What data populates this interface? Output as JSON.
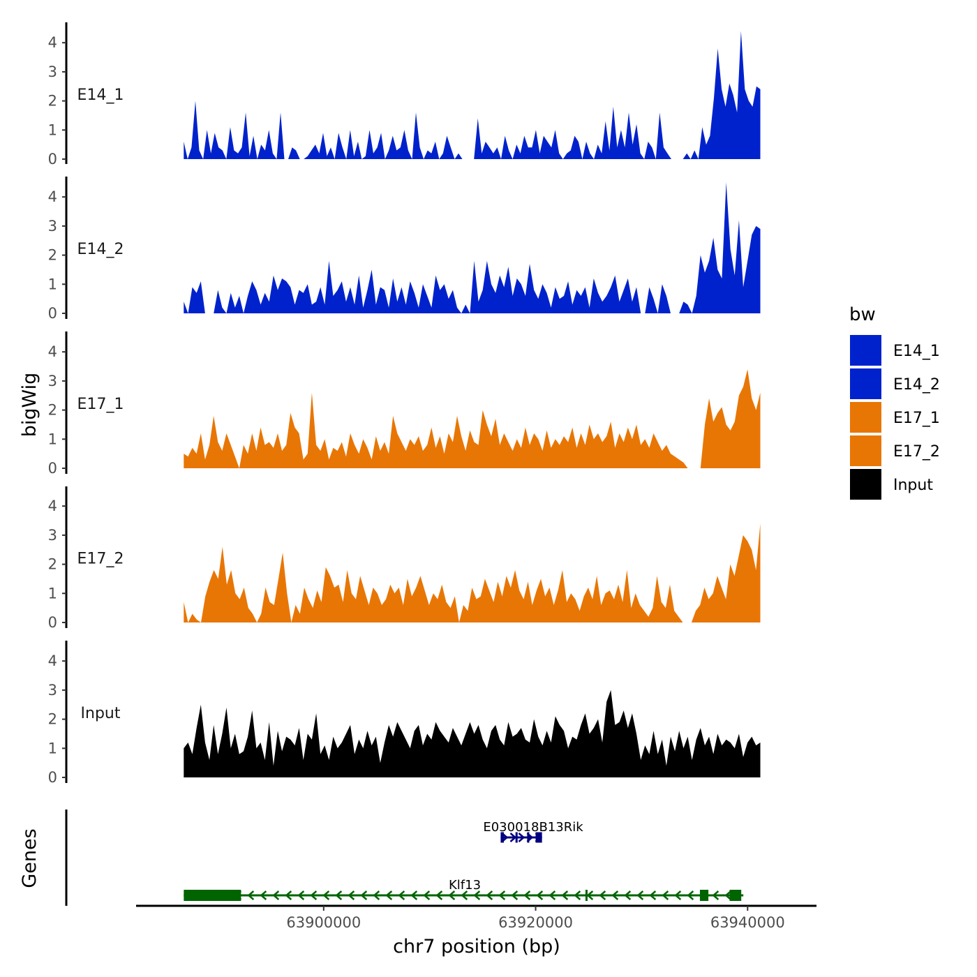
{
  "chart_data": {
    "type": "area",
    "title": "",
    "ylabel": "bigWig",
    "genes_label": "Genes",
    "xlabel": "chr7 position (bp)",
    "xlim": [
      63882300,
      63946500
    ],
    "x_ticks": [
      63900000,
      63920000,
      63940000
    ],
    "x_tick_labels": [
      "63900000",
      "63920000",
      "63940000"
    ],
    "data_xrange": [
      63886800,
      63941200
    ],
    "ylim": [
      0,
      4.6
    ],
    "y_ticks": [
      0,
      1,
      2,
      3,
      4
    ],
    "y_tick_labels": [
      "0",
      "1",
      "2",
      "3",
      "4"
    ],
    "legend": {
      "title": "bw",
      "position": "right",
      "entries": [
        {
          "label": "E14_1",
          "color": "#0022cc"
        },
        {
          "label": "E14_2",
          "color": "#0022cc"
        },
        {
          "label": "E17_1",
          "color": "#e87605"
        },
        {
          "label": "E17_2",
          "color": "#e87605"
        },
        {
          "label": "Input",
          "color": "#000000"
        }
      ]
    },
    "series": [
      {
        "name": "E14_1",
        "color": "#0022cc",
        "values": [
          0.6,
          0,
          0.4,
          2.0,
          0.3,
          0,
          1.0,
          0.2,
          0.9,
          0.4,
          0.3,
          0,
          1.1,
          0.3,
          0.2,
          0.4,
          1.6,
          0.1,
          0.8,
          0,
          0.5,
          0.3,
          1.0,
          0.2,
          0,
          1.6,
          0,
          0,
          0.4,
          0.3,
          0,
          0,
          0.1,
          0.3,
          0.5,
          0.2,
          0.9,
          0.1,
          0.4,
          0,
          0.9,
          0.4,
          0,
          1.0,
          0.1,
          0.6,
          0,
          0.1,
          1.0,
          0.2,
          0.4,
          0.9,
          0,
          0.3,
          0.8,
          0.3,
          0.4,
          1.0,
          0.3,
          0,
          1.6,
          0.4,
          0,
          0.3,
          0.2,
          0.6,
          0,
          0.2,
          0.8,
          0.4,
          0,
          0.2,
          0,
          0,
          0,
          0,
          1.4,
          0.2,
          0.6,
          0.4,
          0.2,
          0.4,
          0,
          0.8,
          0.3,
          0,
          0.5,
          0.2,
          0.8,
          0.4,
          0.4,
          1.0,
          0.2,
          0.8,
          0.6,
          0.4,
          1.0,
          0.2,
          0,
          0.2,
          0.3,
          0.8,
          0.6,
          0,
          0.6,
          0.2,
          0,
          0.5,
          0.2,
          1.3,
          0.3,
          1.8,
          0.4,
          1.0,
          0.4,
          1.6,
          0.5,
          1.2,
          0.2,
          0,
          0.6,
          0.4,
          0,
          1.6,
          0.4,
          0.2,
          0,
          0,
          0,
          0,
          0.2,
          0,
          0.3,
          0,
          1.1,
          0.5,
          0.8,
          2.1,
          3.8,
          2.4,
          1.8,
          2.6,
          2.2,
          1.6,
          4.4,
          2.4,
          2.0,
          1.8,
          2.5,
          2.4
        ]
      },
      {
        "name": "E14_2",
        "color": "#0022cc",
        "values": [
          0.4,
          0,
          0.9,
          0.7,
          1.1,
          0,
          0,
          0,
          0.8,
          0.2,
          0,
          0.7,
          0.2,
          0.6,
          0,
          0.6,
          1.1,
          0.8,
          0.3,
          0.7,
          0.4,
          1.3,
          0.8,
          1.2,
          1.1,
          0.9,
          0.3,
          0.8,
          0.7,
          1.0,
          0.3,
          0.4,
          0.9,
          0.3,
          1.8,
          0.6,
          0.8,
          1.1,
          0.4,
          0.9,
          0.3,
          1.3,
          0.2,
          0.8,
          1.5,
          0.3,
          0.9,
          0.8,
          0.2,
          1.2,
          0.4,
          0.9,
          0.3,
          1.1,
          0.7,
          0.2,
          1.0,
          0.6,
          0.2,
          1.3,
          0.8,
          1.0,
          0.5,
          0.8,
          0.2,
          0,
          0.3,
          0,
          1.8,
          0.4,
          0.8,
          1.8,
          1.0,
          0.7,
          1.3,
          0.9,
          1.6,
          0.6,
          1.2,
          1.0,
          0.6,
          1.7,
          0.8,
          0.5,
          1.0,
          0.7,
          0.2,
          0.9,
          0.5,
          0.6,
          1.1,
          0.3,
          0.8,
          0.6,
          0.9,
          0.2,
          1.2,
          0.7,
          0.4,
          0.6,
          0.9,
          1.3,
          0.4,
          0.8,
          1.2,
          0.4,
          0.9,
          0,
          0,
          0.9,
          0.5,
          0,
          1.0,
          0.6,
          0,
          0,
          0,
          0.4,
          0.3,
          0,
          0.6,
          2.0,
          1.4,
          1.8,
          2.6,
          1.5,
          1.2,
          4.5,
          2.2,
          1.3,
          3.2,
          0.9,
          1.8,
          2.7,
          3.0,
          2.9
        ]
      },
      {
        "name": "E17_1",
        "color": "#e87605",
        "values": [
          0.5,
          0.4,
          0.7,
          0.5,
          1.2,
          0.3,
          0.8,
          1.8,
          0.9,
          0.6,
          1.2,
          0.8,
          0.4,
          0,
          0.8,
          0.5,
          1.2,
          0.6,
          1.4,
          0.8,
          0.9,
          0.7,
          1.2,
          0.6,
          0.8,
          1.9,
          1.4,
          1.2,
          0.3,
          0.5,
          2.6,
          0.8,
          0.6,
          1.0,
          0.3,
          0.7,
          0.6,
          0.9,
          0.4,
          1.2,
          0.8,
          0.5,
          1.0,
          0.7,
          0.3,
          1.1,
          0.6,
          0.9,
          0.5,
          1.8,
          1.2,
          0.9,
          0.6,
          1.0,
          0.8,
          1.1,
          0.6,
          0.8,
          1.4,
          0.7,
          1.1,
          0.5,
          1.2,
          0.9,
          1.8,
          1.1,
          0.6,
          1.3,
          0.9,
          0.8,
          2.0,
          1.5,
          1.1,
          1.7,
          0.8,
          1.2,
          0.9,
          0.6,
          1.0,
          0.7,
          1.4,
          0.8,
          1.2,
          1.0,
          0.6,
          1.3,
          0.7,
          1.0,
          0.8,
          1.1,
          0.9,
          1.4,
          0.7,
          1.2,
          0.8,
          1.5,
          1.0,
          1.2,
          0.9,
          1.1,
          1.6,
          0.7,
          1.2,
          0.9,
          1.4,
          1.0,
          1.5,
          0.8,
          1.0,
          0.7,
          1.2,
          0.9,
          0.6,
          0.8,
          0.5,
          0.4,
          0.3,
          0.2,
          0,
          0,
          0,
          0,
          1.5,
          2.4,
          1.6,
          1.9,
          2.1,
          1.5,
          1.3,
          1.6,
          2.5,
          2.8,
          3.4,
          2.4,
          2.0,
          2.6
        ]
      },
      {
        "name": "E17_2",
        "color": "#e87605",
        "values": [
          0.7,
          0,
          0.3,
          0.1,
          0,
          0.9,
          1.4,
          1.8,
          1.5,
          2.6,
          1.3,
          1.8,
          1.0,
          0.8,
          1.2,
          0.5,
          0.3,
          0,
          0.3,
          1.2,
          0.7,
          0.6,
          1.5,
          2.4,
          1.0,
          0,
          0.6,
          0.3,
          1.2,
          0.8,
          0.5,
          1.1,
          0.7,
          1.9,
          1.6,
          1.2,
          1.3,
          0.7,
          1.8,
          1.0,
          0.8,
          1.6,
          1.1,
          0.6,
          1.2,
          1.0,
          0.6,
          0.8,
          1.3,
          1.0,
          1.2,
          0.6,
          1.5,
          0.9,
          1.2,
          1.6,
          1.1,
          0.6,
          1.0,
          0.8,
          1.3,
          0.7,
          0.5,
          0.9,
          0,
          0.6,
          0.4,
          1.2,
          0.8,
          0.9,
          1.5,
          1.1,
          0.7,
          1.4,
          0.9,
          1.6,
          1.2,
          1.8,
          1.1,
          0.8,
          1.4,
          0.6,
          1.1,
          1.5,
          0.9,
          1.2,
          0.6,
          1.1,
          1.8,
          0.7,
          1.0,
          0.8,
          0.4,
          0.9,
          1.2,
          0.8,
          1.6,
          0.6,
          1.0,
          1.1,
          0.8,
          1.3,
          0.7,
          1.8,
          0.5,
          1.0,
          0.6,
          0.4,
          0.2,
          0.5,
          1.6,
          0.7,
          0.5,
          1.3,
          0.4,
          0.2,
          0,
          0,
          0,
          0.4,
          0.6,
          1.2,
          0.8,
          1.0,
          1.6,
          1.2,
          0.8,
          2.0,
          1.6,
          2.3,
          3.0,
          2.8,
          2.5,
          1.8,
          3.4
        ]
      },
      {
        "name": "Input",
        "color": "#000000",
        "values": [
          1.0,
          1.2,
          0.8,
          1.7,
          2.5,
          1.2,
          0.6,
          1.8,
          0.8,
          1.5,
          2.4,
          1.0,
          1.5,
          0.8,
          0.9,
          1.4,
          2.3,
          1.0,
          1.2,
          0.6,
          1.9,
          0.4,
          1.6,
          0.9,
          1.4,
          1.3,
          1.1,
          1.7,
          0.6,
          1.5,
          1.3,
          2.2,
          0.8,
          1.1,
          0.6,
          1.4,
          1.0,
          1.2,
          1.5,
          1.8,
          0.8,
          1.3,
          1.0,
          1.6,
          1.1,
          1.4,
          0.5,
          1.2,
          1.8,
          1.4,
          1.9,
          1.6,
          1.3,
          1.0,
          1.6,
          1.8,
          1.1,
          1.5,
          1.3,
          1.9,
          1.6,
          1.4,
          1.2,
          1.7,
          1.4,
          1.1,
          1.5,
          1.9,
          1.5,
          1.8,
          1.3,
          1.0,
          1.6,
          1.8,
          1.3,
          1.1,
          1.9,
          1.4,
          1.5,
          1.7,
          1.3,
          1.2,
          2.0,
          1.4,
          1.1,
          1.6,
          1.2,
          2.1,
          1.8,
          1.6,
          1.0,
          1.4,
          1.3,
          1.8,
          2.2,
          1.5,
          1.7,
          2.0,
          1.2,
          2.6,
          3.0,
          1.8,
          1.9,
          2.3,
          1.7,
          2.2,
          1.5,
          0.6,
          1.1,
          0.8,
          1.6,
          0.8,
          1.3,
          0.4,
          1.4,
          0.9,
          1.6,
          1.0,
          1.4,
          0.6,
          1.3,
          1.7,
          1.1,
          1.4,
          0.8,
          1.5,
          1.1,
          1.3,
          1.2,
          1.0,
          1.5,
          0.7,
          1.2,
          1.4,
          1.1,
          1.2
        ]
      }
    ],
    "genes": [
      {
        "name": "E030018B13Rik",
        "strand": "+",
        "start": 63916700,
        "end": 63920600,
        "color": "#000080",
        "exons": [
          [
            63916700,
            63917000
          ],
          [
            63918100,
            63918300
          ],
          [
            63919200,
            63919400
          ],
          [
            63920000,
            63920600
          ]
        ]
      },
      {
        "name": "Klf13",
        "strand": "-",
        "start": 63886800,
        "end": 63939600,
        "color": "#006400",
        "exons": [
          [
            63886800,
            63892200
          ],
          [
            63924700,
            63924900
          ],
          [
            63935500,
            63936300
          ],
          [
            63938300,
            63939400
          ]
        ]
      }
    ]
  }
}
